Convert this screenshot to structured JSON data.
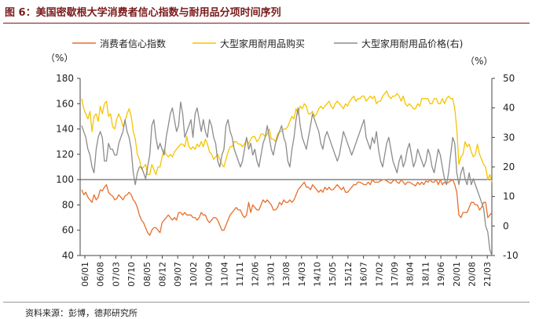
{
  "title": "图 6：美国密歇根大学消费者信心指数与耐用品分项时间序列",
  "source": "资料来源：彭博，德邦研究所",
  "colors": {
    "title": "#7a1a1a",
    "sentiment": "#e86e2b",
    "buying": "#f5c400",
    "price": "#8c8c8c",
    "axis": "#444444"
  },
  "chart_data": {
    "type": "line",
    "legend": [
      "消费者信心指数",
      "大型家用耐用品购买",
      "大型家用耐用品价格(右)"
    ],
    "legend_position": "top",
    "left_axis": {
      "unit": "（%）",
      "min": 40,
      "max": 180,
      "ticks": [
        40,
        60,
        80,
        100,
        120,
        140,
        160,
        180
      ]
    },
    "right_axis": {
      "unit": "（%）",
      "min": -10,
      "max": 50,
      "ticks": [
        -10,
        0,
        10,
        20,
        30,
        40,
        50
      ]
    },
    "x_tick_labels": [
      "06/01",
      "06/08",
      "07/03",
      "07/10",
      "08/05",
      "08/12",
      "09/07",
      "10/02",
      "10/09",
      "11/04",
      "11/11",
      "12/06",
      "13/01",
      "13/08",
      "14/03",
      "14/10",
      "15/05",
      "15/12",
      "16/07",
      "17/02",
      "17/09",
      "18/04",
      "18/11",
      "19/06",
      "20/01",
      "20/08",
      "21/03"
    ],
    "x_start": "2006-01",
    "x_end": "2021-06",
    "series": [
      {
        "name": "消费者信心指数",
        "axis": "left",
        "values": [
          92,
          88,
          90,
          86,
          84,
          82,
          88,
          84,
          86,
          92,
          91,
          94,
          96,
          90,
          88,
          87,
          84,
          85,
          88,
          86,
          84,
          87,
          88,
          90,
          88,
          84,
          82,
          78,
          72,
          68,
          66,
          62,
          58,
          56,
          60,
          62,
          62,
          60,
          58,
          66,
          68,
          70,
          72,
          70,
          68,
          70,
          68,
          74,
          74,
          72,
          74,
          72,
          72,
          72,
          70,
          70,
          68,
          70,
          74,
          72,
          72,
          68,
          66,
          68,
          70,
          70,
          68,
          64,
          60,
          60,
          64,
          68,
          72,
          74,
          76,
          78,
          76,
          76,
          72,
          70,
          72,
          82,
          74,
          80,
          78,
          76,
          76,
          80,
          84,
          82,
          84,
          82,
          80,
          76,
          76,
          78,
          82,
          80,
          84,
          82,
          82,
          84,
          82,
          84,
          88,
          92,
          94,
          96,
          98,
          94,
          94,
          92,
          96,
          94,
          92,
          90,
          92,
          90,
          94,
          92,
          94,
          92,
          92,
          94,
          96,
          94,
          92,
          94,
          90,
          90,
          92,
          94,
          96,
          96,
          98,
          98,
          97,
          96,
          96,
          98,
          96,
          100,
          98,
          98,
          98,
          99,
          100,
          100,
          99,
          98,
          97,
          99,
          100,
          98,
          97,
          100,
          98,
          96,
          98,
          98,
          97,
          96,
          95,
          98,
          96,
          98,
          96,
          99,
          98,
          100,
          98,
          98,
          100,
          96,
          100,
          96,
          98,
          97,
          98,
          99,
          100,
          96,
          90,
          72,
          70,
          74,
          74,
          74,
          78,
          82,
          82,
          80,
          80,
          76,
          78,
          82,
          82,
          70,
          72,
          74
        ]
      },
      {
        "name": "大型家用耐用品购买",
        "axis": "left",
        "values": [
          164,
          156,
          152,
          148,
          154,
          138,
          150,
          152,
          146,
          158,
          152,
          160,
          162,
          150,
          152,
          142,
          140,
          148,
          152,
          148,
          142,
          146,
          152,
          156,
          150,
          138,
          132,
          120,
          116,
          108,
          110,
          112,
          104,
          104,
          112,
          108,
          104,
          110,
          110,
          118,
          124,
          120,
          118,
          120,
          118,
          122,
          124,
          126,
          128,
          128,
          126,
          134,
          126,
          124,
          126,
          124,
          128,
          126,
          130,
          126,
          132,
          128,
          122,
          120,
          116,
          118,
          120,
          116,
          112,
          110,
          116,
          122,
          126,
          126,
          130,
          130,
          128,
          128,
          126,
          128,
          132,
          128,
          132,
          134,
          134,
          130,
          132,
          136,
          136,
          134,
          136,
          140,
          132,
          132,
          130,
          136,
          138,
          138,
          140,
          140,
          142,
          146,
          150,
          148,
          156,
          152,
          158,
          156,
          160,
          158,
          152,
          152,
          154,
          150,
          152,
          156,
          158,
          156,
          158,
          160,
          162,
          158,
          156,
          160,
          162,
          160,
          158,
          156,
          160,
          158,
          162,
          164,
          166,
          162,
          164,
          164,
          166,
          166,
          162,
          164,
          166,
          164,
          166,
          160,
          162,
          162,
          166,
          168,
          170,
          166,
          164,
          166,
          166,
          168,
          166,
          162,
          166,
          160,
          158,
          160,
          158,
          156,
          156,
          160,
          158,
          164,
          164,
          164,
          164,
          160,
          160,
          164,
          164,
          160,
          160,
          164,
          160,
          164,
          166,
          164,
          164,
          156,
          140,
          112,
          118,
          120,
          130,
          126,
          128,
          122,
          118,
          120,
          128,
          120,
          116,
          112,
          110,
          100,
          104,
          98
        ]
      },
      {
        "name": "大型家用耐用品价格(右)",
        "axis": "right",
        "values": [
          34,
          32,
          30,
          26,
          24,
          20,
          18,
          26,
          30,
          32,
          30,
          22,
          22,
          28,
          26,
          26,
          24,
          24,
          28,
          30,
          32,
          36,
          32,
          30,
          26,
          18,
          14,
          18,
          20,
          20,
          18,
          16,
          20,
          24,
          34,
          36,
          30,
          26,
          28,
          26,
          24,
          30,
          34,
          38,
          40,
          36,
          32,
          34,
          42,
          38,
          30,
          32,
          34,
          36,
          30,
          38,
          40,
          36,
          32,
          36,
          32,
          30,
          36,
          34,
          30,
          28,
          22,
          20,
          24,
          26,
          34,
          36,
          32,
          30,
          26,
          24,
          22,
          20,
          22,
          26,
          30,
          26,
          28,
          24,
          26,
          22,
          20,
          24,
          28,
          30,
          34,
          30,
          26,
          24,
          28,
          30,
          32,
          34,
          30,
          28,
          22,
          20,
          26,
          30,
          36,
          40,
          34,
          30,
          28,
          26,
          30,
          34,
          38,
          36,
          34,
          32,
          28,
          26,
          30,
          32,
          30,
          28,
          26,
          24,
          22,
          24,
          28,
          32,
          30,
          28,
          26,
          24,
          26,
          28,
          30,
          32,
          34,
          36,
          30,
          28,
          26,
          30,
          28,
          32,
          26,
          22,
          20,
          24,
          28,
          30,
          26,
          22,
          20,
          18,
          22,
          24,
          20,
          22,
          26,
          28,
          24,
          20,
          22,
          26,
          24,
          22,
          20,
          22,
          26,
          24,
          20,
          18,
          22,
          26,
          24,
          20,
          16,
          14,
          18,
          24,
          30,
          28,
          18,
          14,
          18,
          20,
          16,
          14,
          18,
          14,
          16,
          14,
          12,
          10,
          8,
          6,
          0,
          -2,
          -8,
          -10
        ]
      }
    ]
  }
}
